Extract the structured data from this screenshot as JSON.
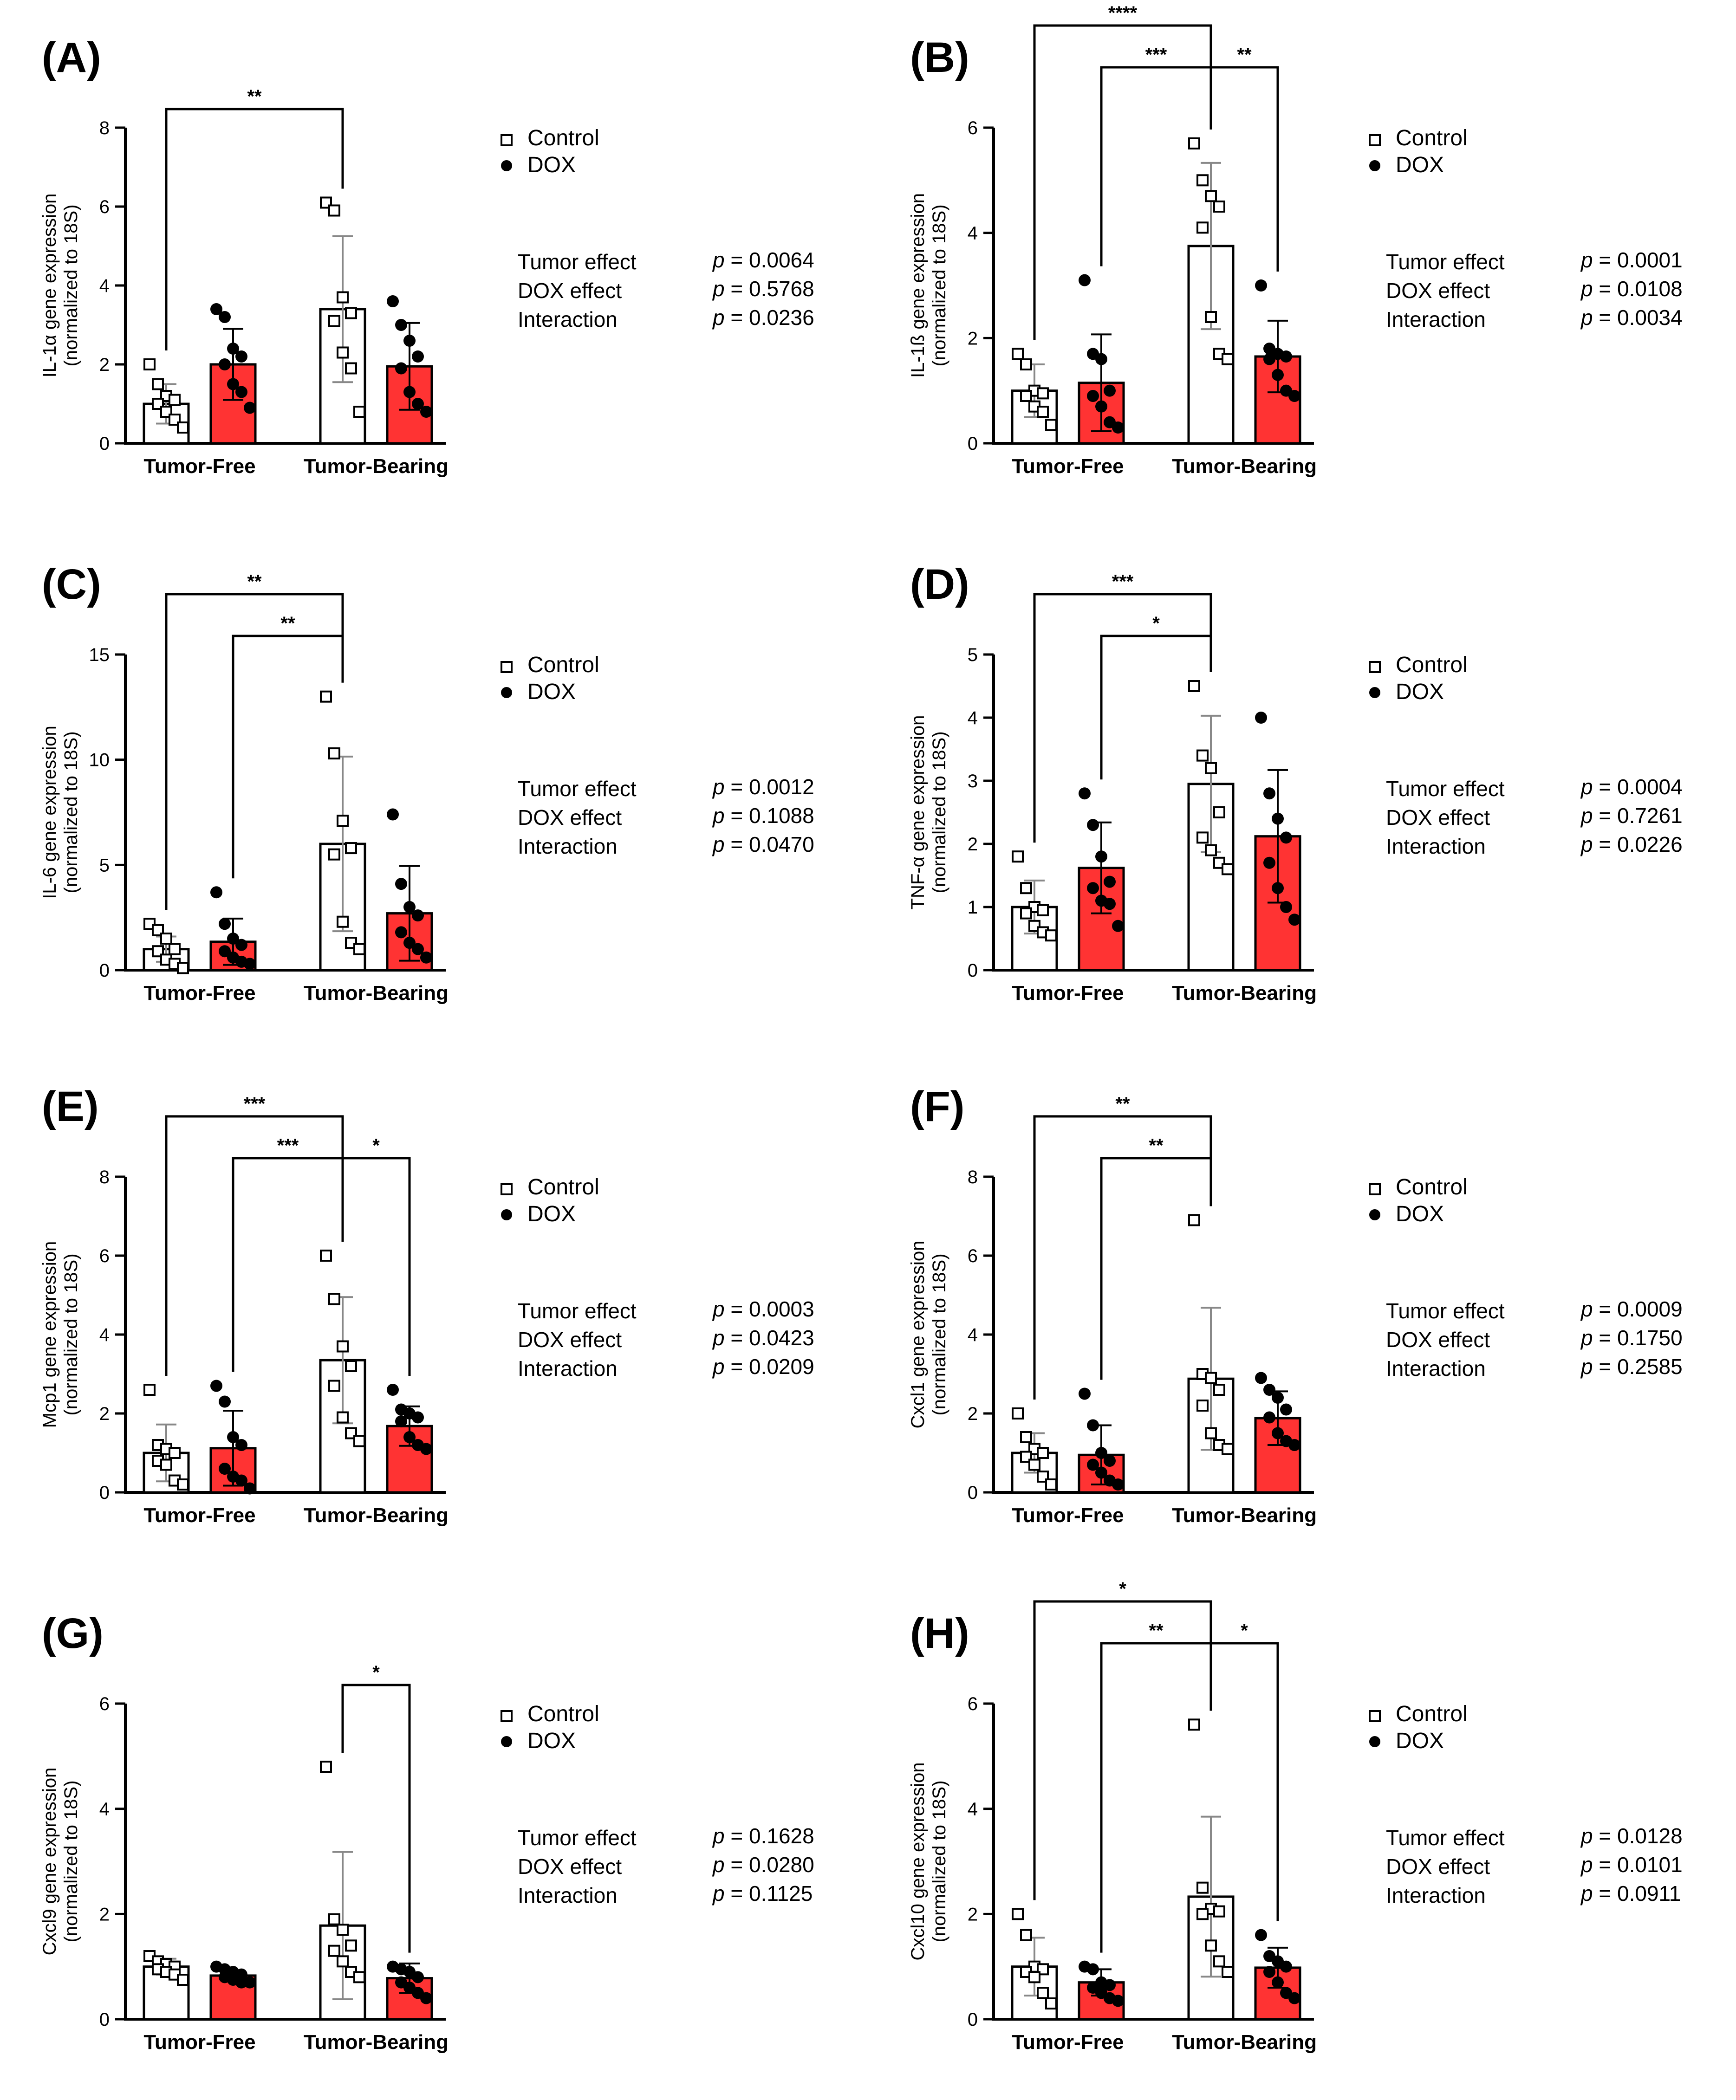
{
  "chart_data": [
    {
      "panel": "(A)",
      "type": "bar",
      "ylabel": "IL-1α gene expression",
      "ylabel2": "(normalized to 18S)",
      "ylim": [
        0,
        8
      ],
      "yticks": [
        0,
        2,
        4,
        6,
        8
      ],
      "categories": [
        "Tumor-Free",
        "Tumor-Bearing"
      ],
      "series": [
        {
          "name": "Control",
          "color": "#ffffff",
          "means": [
            1.0,
            3.4
          ],
          "sd": [
            0.5,
            1.85
          ],
          "points": [
            [
              2.0,
              1.5,
              1.2,
              1.1,
              1.0,
              0.8,
              0.6,
              0.4
            ],
            [
              6.1,
              5.9,
              3.7,
              3.3,
              3.1,
              2.3,
              1.9,
              0.8
            ]
          ]
        },
        {
          "name": "DOX",
          "color": "#ff3333",
          "means": [
            2.0,
            1.95
          ],
          "sd": [
            0.9,
            1.1
          ],
          "points": [
            [
              3.4,
              3.2,
              2.4,
              2.2,
              2.0,
              1.5,
              1.3,
              0.9
            ],
            [
              3.6,
              3.0,
              2.6,
              2.2,
              1.9,
              1.3,
              1.0,
              0.8
            ]
          ]
        }
      ],
      "significance": [
        {
          "from": [
            0,
            0
          ],
          "to": [
            1,
            0
          ],
          "label": "**",
          "level": 0
        }
      ],
      "stats": {
        "labels": [
          "Tumor effect",
          "DOX effect",
          "Interaction"
        ],
        "pvalues": [
          "= 0.0064",
          "= 0.5768",
          "= 0.0236"
        ]
      },
      "legend": [
        "Control",
        "DOX"
      ]
    },
    {
      "panel": "(B)",
      "type": "bar",
      "ylabel": "IL-1ß gene expression",
      "ylabel2": "(normalized to 18S)",
      "ylim": [
        0,
        6
      ],
      "yticks": [
        0,
        2,
        4,
        6
      ],
      "categories": [
        "Tumor-Free",
        "Tumor-Bearing"
      ],
      "series": [
        {
          "name": "Control",
          "color": "#ffffff",
          "means": [
            1.0,
            3.75
          ],
          "sd": [
            0.5,
            1.58
          ],
          "points": [
            [
              1.7,
              1.5,
              1.0,
              0.95,
              0.9,
              0.7,
              0.6,
              0.35
            ],
            [
              5.7,
              5.0,
              4.7,
              4.5,
              4.1,
              2.4,
              1.7,
              1.6
            ]
          ]
        },
        {
          "name": "DOX",
          "color": "#ff3333",
          "means": [
            1.15,
            1.65
          ],
          "sd": [
            0.92,
            0.68
          ],
          "points": [
            [
              3.1,
              1.7,
              1.6,
              1.0,
              0.9,
              0.7,
              0.4,
              0.3
            ],
            [
              3.0,
              1.8,
              1.7,
              1.65,
              1.6,
              1.3,
              1.0,
              0.9
            ]
          ]
        }
      ],
      "significance": [
        {
          "from": [
            0,
            0
          ],
          "to": [
            1,
            0
          ],
          "label": "****",
          "level": 2
        },
        {
          "from": [
            0,
            1
          ],
          "to": [
            1,
            0
          ],
          "label": "***",
          "level": 1
        },
        {
          "from": [
            1,
            0
          ],
          "to": [
            1,
            1
          ],
          "label": "**",
          "level": 1
        }
      ],
      "stats": {
        "labels": [
          "Tumor effect",
          "DOX effect",
          "Interaction"
        ],
        "pvalues": [
          "= 0.0001",
          "= 0.0108",
          "= 0.0034"
        ]
      },
      "legend": [
        "Control",
        "DOX"
      ]
    },
    {
      "panel": "(C)",
      "type": "bar",
      "ylabel": "IL-6 gene expression",
      "ylabel2": "(normalized to 18S)",
      "ylim": [
        0,
        15
      ],
      "yticks": [
        0,
        5,
        10,
        15
      ],
      "categories": [
        "Tumor-Free",
        "Tumor-Bearing"
      ],
      "series": [
        {
          "name": "Control",
          "color": "#ffffff",
          "means": [
            1.0,
            6.0
          ],
          "sd": [
            0.6,
            4.15
          ],
          "points": [
            [
              2.2,
              1.9,
              1.5,
              1.0,
              0.9,
              0.5,
              0.3,
              0.1
            ],
            [
              13.0,
              10.3,
              7.1,
              5.8,
              5.5,
              2.3,
              1.3,
              1.0
            ]
          ]
        },
        {
          "name": "DOX",
          "color": "#ff3333",
          "means": [
            1.35,
            2.7
          ],
          "sd": [
            1.1,
            2.25
          ],
          "points": [
            [
              3.7,
              2.2,
              1.5,
              1.2,
              0.9,
              0.6,
              0.4,
              0.3
            ],
            [
              7.4,
              4.1,
              3.0,
              2.6,
              1.8,
              1.3,
              1.0,
              0.6
            ]
          ]
        }
      ],
      "significance": [
        {
          "from": [
            0,
            0
          ],
          "to": [
            1,
            0
          ],
          "label": "**",
          "level": 1
        },
        {
          "from": [
            0,
            1
          ],
          "to": [
            1,
            0
          ],
          "label": "**",
          "level": 0
        }
      ],
      "stats": {
        "labels": [
          "Tumor effect",
          "DOX effect",
          "Interaction"
        ],
        "pvalues": [
          "= 0.0012",
          "= 0.1088",
          "= 0.0470"
        ]
      },
      "legend": [
        "Control",
        "DOX"
      ]
    },
    {
      "panel": "(D)",
      "type": "bar",
      "ylabel": "TNF-α gene expression",
      "ylabel2": "(normalized to 18S)",
      "ylim": [
        0,
        5
      ],
      "yticks": [
        0,
        1,
        2,
        3,
        4,
        5
      ],
      "categories": [
        "Tumor-Free",
        "Tumor-Bearing"
      ],
      "series": [
        {
          "name": "Control",
          "color": "#ffffff",
          "means": [
            1.0,
            2.95
          ],
          "sd": [
            0.42,
            1.08
          ],
          "points": [
            [
              1.8,
              1.3,
              1.0,
              0.95,
              0.9,
              0.7,
              0.6,
              0.55
            ],
            [
              4.5,
              3.4,
              3.2,
              2.5,
              2.1,
              1.9,
              1.7,
              1.6
            ]
          ]
        },
        {
          "name": "DOX",
          "color": "#ff3333",
          "means": [
            1.62,
            2.12
          ],
          "sd": [
            0.72,
            1.05
          ],
          "points": [
            [
              2.8,
              2.3,
              1.8,
              1.4,
              1.3,
              1.1,
              1.05,
              0.7
            ],
            [
              4.0,
              2.8,
              2.4,
              2.1,
              1.7,
              1.3,
              1.0,
              0.8
            ]
          ]
        }
      ],
      "significance": [
        {
          "from": [
            0,
            0
          ],
          "to": [
            1,
            0
          ],
          "label": "***",
          "level": 1
        },
        {
          "from": [
            0,
            1
          ],
          "to": [
            1,
            0
          ],
          "label": "*",
          "level": 0
        }
      ],
      "stats": {
        "labels": [
          "Tumor effect",
          "DOX effect",
          "Interaction"
        ],
        "pvalues": [
          "= 0.0004",
          "= 0.7261",
          "= 0.0226"
        ]
      },
      "legend": [
        "Control",
        "DOX"
      ]
    },
    {
      "panel": "(E)",
      "type": "bar",
      "ylabel": "Mcp1 gene expression",
      "ylabel2": "(normalized to 18S)",
      "ylim": [
        0,
        8
      ],
      "yticks": [
        0,
        2,
        4,
        6,
        8
      ],
      "categories": [
        "Tumor-Free",
        "Tumor-Bearing"
      ],
      "series": [
        {
          "name": "Control",
          "color": "#ffffff",
          "means": [
            1.0,
            3.35
          ],
          "sd": [
            0.72,
            1.6
          ],
          "points": [
            [
              2.6,
              1.2,
              1.1,
              1.0,
              0.8,
              0.7,
              0.3,
              0.2
            ],
            [
              6.0,
              4.9,
              3.7,
              3.2,
              2.7,
              1.9,
              1.5,
              1.3
            ]
          ]
        },
        {
          "name": "DOX",
          "color": "#ff3333",
          "means": [
            1.12,
            1.68
          ],
          "sd": [
            0.95,
            0.5
          ],
          "points": [
            [
              2.7,
              2.3,
              1.4,
              1.2,
              0.6,
              0.4,
              0.3,
              0.1
            ],
            [
              2.6,
              2.1,
              2.0,
              1.9,
              1.8,
              1.4,
              1.2,
              1.1
            ]
          ]
        }
      ],
      "significance": [
        {
          "from": [
            0,
            0
          ],
          "to": [
            1,
            0
          ],
          "label": "***",
          "level": 1
        },
        {
          "from": [
            0,
            1
          ],
          "to": [
            1,
            0
          ],
          "label": "***",
          "level": 0
        },
        {
          "from": [
            1,
            0
          ],
          "to": [
            1,
            1
          ],
          "label": "*",
          "level": 0
        }
      ],
      "stats": {
        "labels": [
          "Tumor effect",
          "DOX effect",
          "Interaction"
        ],
        "pvalues": [
          "= 0.0003",
          "= 0.0423",
          "= 0.0209"
        ]
      },
      "legend": [
        "Control",
        "DOX"
      ]
    },
    {
      "panel": "(F)",
      "type": "bar",
      "ylabel": "Cxcl1 gene expression",
      "ylabel2": "(normalized to 18S)",
      "ylim": [
        0,
        8
      ],
      "yticks": [
        0,
        2,
        4,
        6,
        8
      ],
      "categories": [
        "Tumor-Free",
        "Tumor-Bearing"
      ],
      "series": [
        {
          "name": "Control",
          "color": "#ffffff",
          "means": [
            1.0,
            2.88
          ],
          "sd": [
            0.5,
            1.8
          ],
          "points": [
            [
              2.0,
              1.4,
              1.1,
              1.0,
              0.9,
              0.7,
              0.4,
              0.2
            ],
            [
              6.9,
              3.0,
              2.9,
              2.6,
              2.2,
              1.5,
              1.2,
              1.1
            ]
          ]
        },
        {
          "name": "DOX",
          "color": "#ff3333",
          "means": [
            0.95,
            1.88
          ],
          "sd": [
            0.75,
            0.68
          ],
          "points": [
            [
              2.5,
              1.7,
              1.0,
              0.8,
              0.7,
              0.5,
              0.3,
              0.2
            ],
            [
              2.9,
              2.6,
              2.4,
              2.1,
              1.9,
              1.5,
              1.3,
              1.2
            ]
          ]
        }
      ],
      "significance": [
        {
          "from": [
            0,
            0
          ],
          "to": [
            1,
            0
          ],
          "label": "**",
          "level": 1
        },
        {
          "from": [
            0,
            1
          ],
          "to": [
            1,
            0
          ],
          "label": "**",
          "level": 0
        }
      ],
      "stats": {
        "labels": [
          "Tumor effect",
          "DOX effect",
          "Interaction"
        ],
        "pvalues": [
          "= 0.0009",
          "= 0.1750",
          "= 0.2585"
        ]
      },
      "legend": [
        "Control",
        "DOX"
      ]
    },
    {
      "panel": "(G)",
      "type": "bar",
      "ylabel": "Cxcl9 gene expression",
      "ylabel2": "(normalized to 18S)",
      "ylim": [
        0,
        6
      ],
      "yticks": [
        0,
        2,
        4,
        6
      ],
      "categories": [
        "Tumor-Free",
        "Tumor-Bearing"
      ],
      "series": [
        {
          "name": "Control",
          "color": "#ffffff",
          "means": [
            1.0,
            1.78
          ],
          "sd": [
            0.15,
            1.4
          ],
          "points": [
            [
              1.2,
              1.1,
              1.05,
              1.0,
              0.95,
              0.9,
              0.85,
              0.75
            ],
            [
              4.8,
              1.9,
              1.7,
              1.4,
              1.3,
              1.1,
              0.9,
              0.8
            ]
          ]
        },
        {
          "name": "DOX",
          "color": "#ff3333",
          "means": [
            0.83,
            0.78
          ],
          "sd": [
            0.1,
            0.28
          ],
          "points": [
            [
              1.0,
              0.95,
              0.9,
              0.85,
              0.8,
              0.75,
              0.7,
              0.7
            ],
            [
              1.0,
              0.95,
              0.9,
              0.8,
              0.7,
              0.6,
              0.5,
              0.4
            ]
          ]
        }
      ],
      "significance": [
        {
          "from": [
            1,
            0
          ],
          "to": [
            1,
            1
          ],
          "label": "*",
          "level": 0
        }
      ],
      "stats": {
        "labels": [
          "Tumor effect",
          "DOX effect",
          "Interaction"
        ],
        "pvalues": [
          "= 0.1628",
          "= 0.0280",
          "= 0.1125"
        ]
      },
      "legend": [
        "Control",
        "DOX"
      ]
    },
    {
      "panel": "(H)",
      "type": "bar",
      "ylabel": "Cxcl10 gene expression",
      "ylabel2": "(normalized to 18S)",
      "ylim": [
        0,
        6
      ],
      "yticks": [
        0,
        2,
        4,
        6
      ],
      "categories": [
        "Tumor-Free",
        "Tumor-Bearing"
      ],
      "series": [
        {
          "name": "Control",
          "color": "#ffffff",
          "means": [
            1.0,
            2.33
          ],
          "sd": [
            0.55,
            1.52
          ],
          "points": [
            [
              2.0,
              1.6,
              1.0,
              0.95,
              0.9,
              0.8,
              0.5,
              0.3
            ],
            [
              5.6,
              2.5,
              2.1,
              2.05,
              2.0,
              1.4,
              1.1,
              0.9
            ]
          ]
        },
        {
          "name": "DOX",
          "color": "#ff3333",
          "means": [
            0.7,
            0.98
          ],
          "sd": [
            0.25,
            0.38
          ],
          "points": [
            [
              1.0,
              0.95,
              0.7,
              0.65,
              0.6,
              0.5,
              0.4,
              0.35
            ],
            [
              1.6,
              1.2,
              1.1,
              1.0,
              0.9,
              0.7,
              0.5,
              0.4
            ]
          ]
        }
      ],
      "significance": [
        {
          "from": [
            0,
            0
          ],
          "to": [
            1,
            0
          ],
          "label": "*",
          "level": 2
        },
        {
          "from": [
            0,
            1
          ],
          "to": [
            1,
            0
          ],
          "label": "**",
          "level": 1
        },
        {
          "from": [
            1,
            0
          ],
          "to": [
            1,
            1
          ],
          "label": "*",
          "level": 1
        }
      ],
      "stats": {
        "labels": [
          "Tumor effect",
          "DOX effect",
          "Interaction"
        ],
        "pvalues": [
          "= 0.0128",
          "= 0.0101",
          "= 0.0911"
        ]
      },
      "legend": [
        "Control",
        "DOX"
      ]
    }
  ]
}
